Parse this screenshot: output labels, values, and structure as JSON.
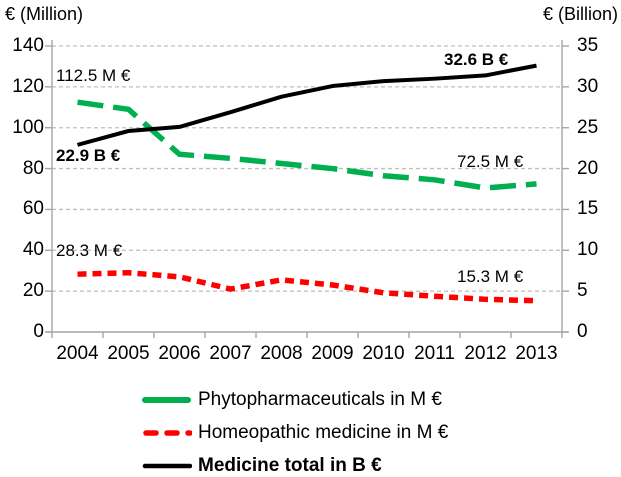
{
  "chart_data": {
    "type": "line",
    "title": "",
    "x": {
      "categories": [
        "2004",
        "2005",
        "2006",
        "2007",
        "2008",
        "2009",
        "2010",
        "2011",
        "2012",
        "2013"
      ]
    },
    "y_left": {
      "title": "€ (Million)",
      "min": 0,
      "max": 140,
      "tick_step": 20,
      "ticks": [
        140,
        120,
        100,
        80,
        60,
        40,
        20,
        0
      ]
    },
    "y_right": {
      "title": "€ (Billion)",
      "min": 0,
      "max": 35,
      "tick_step": 5,
      "ticks": [
        35,
        30,
        25,
        20,
        15,
        10,
        5,
        0
      ]
    },
    "grid": "horizontal-dashed",
    "legend_position": "bottom-left",
    "series": [
      {
        "name": "Phytopharmaceuticals in M €",
        "axis": "left",
        "color": "#00B050",
        "style": "dashed-long",
        "label_bold": false,
        "values": [
          112.5,
          109,
          87,
          85,
          82.5,
          80,
          76.5,
          74.5,
          70.5,
          72.5
        ]
      },
      {
        "name": "Homeopathic medicine in M €",
        "axis": "left",
        "color": "#FF0000",
        "style": "dashed-short",
        "label_bold": false,
        "values": [
          28.3,
          29,
          27,
          21,
          25.5,
          23,
          19.2,
          17.5,
          16,
          15.3
        ]
      },
      {
        "name": "Medicine total in B €",
        "axis": "right",
        "color": "#000000",
        "style": "solid",
        "label_bold": true,
        "values": [
          22.9,
          24.6,
          25.1,
          26.9,
          28.8,
          30.1,
          30.7,
          31.0,
          31.4,
          32.6
        ]
      }
    ],
    "annotations": [
      {
        "text": "112.5 M €",
        "bold": false
      },
      {
        "text": "22.9 B €",
        "bold": true
      },
      {
        "text": "28.3 M €",
        "bold": false
      },
      {
        "text": "32.6 B €",
        "bold": true
      },
      {
        "text": "72.5 M €",
        "bold": false
      },
      {
        "text": "15.3 M €",
        "bold": false
      }
    ],
    "colors": {
      "gridline": "#BFBFBF",
      "axis": "#A6A6A6",
      "text": "#000000",
      "background": "#FFFFFF"
    }
  }
}
